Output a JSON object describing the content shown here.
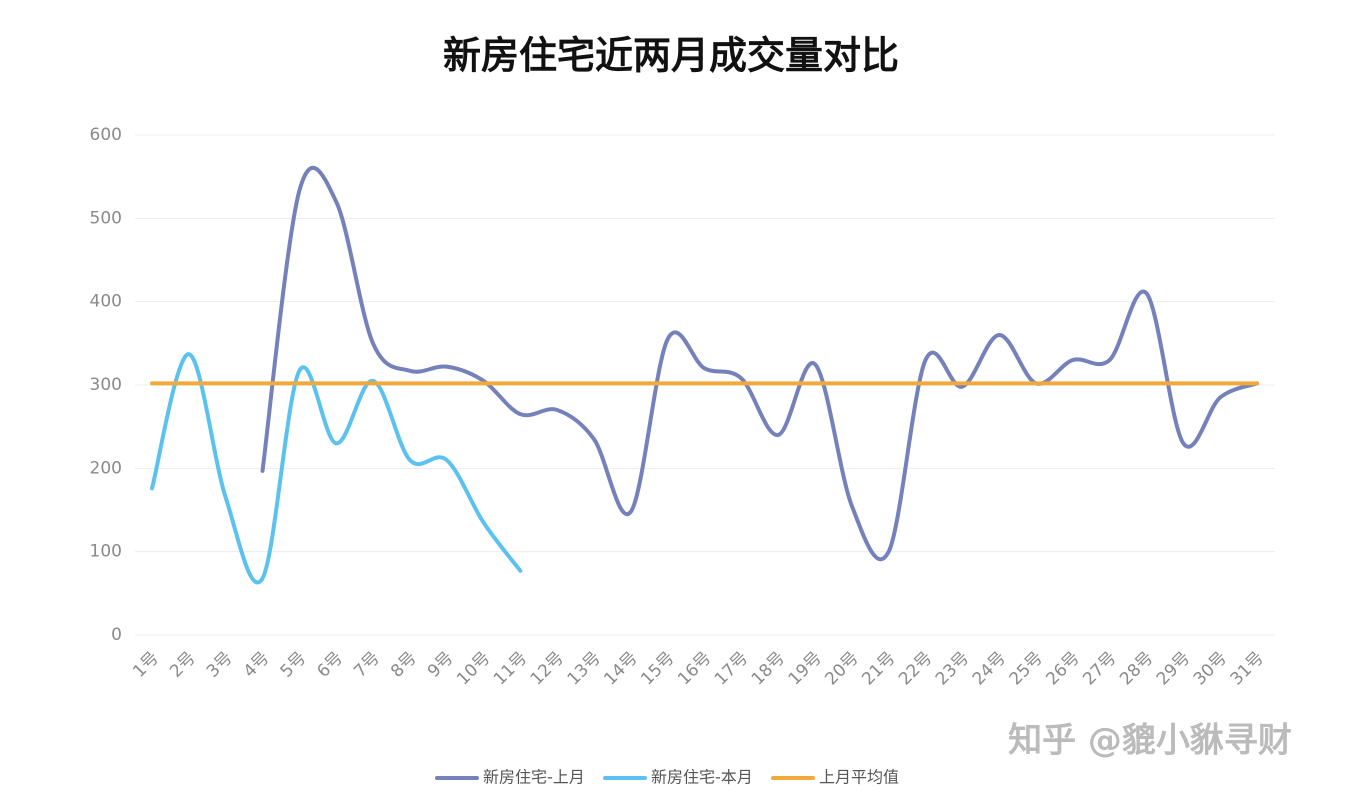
{
  "chart_data": {
    "type": "line",
    "title": "新房住宅近两月成交量对比",
    "watermark": "知乎 @貔小貅寻财",
    "categories": [
      "1号",
      "2号",
      "3号",
      "4号",
      "5号",
      "6号",
      "7号",
      "8号",
      "9号",
      "10号",
      "11号",
      "12号",
      "13号",
      "14号",
      "15号",
      "16号",
      "17号",
      "18号",
      "19号",
      "20号",
      "21号",
      "22号",
      "23号",
      "24号",
      "25号",
      "26号",
      "27号",
      "28号",
      "29号",
      "30号",
      "31号"
    ],
    "series": [
      {
        "name": "新房住宅-上月",
        "color": "#7581bb",
        "values": [
          null,
          null,
          null,
          197,
          533,
          520,
          350,
          317,
          322,
          305,
          265,
          270,
          235,
          148,
          355,
          320,
          308,
          240,
          325,
          155,
          100,
          330,
          298,
          360,
          302,
          330,
          330,
          410,
          230,
          285,
          302
        ]
      },
      {
        "name": "新房住宅-本月",
        "color": "#5bc2f0",
        "values": [
          176,
          337,
          165,
          68,
          317,
          230,
          305,
          210,
          210,
          135,
          77,
          null,
          null,
          null,
          null,
          null,
          null,
          null,
          null,
          null,
          null,
          null,
          null,
          null,
          null,
          null,
          null,
          null,
          null,
          null,
          null
        ]
      },
      {
        "name": "上月平均值",
        "color": "#f2a93b",
        "values": [
          302,
          302,
          302,
          302,
          302,
          302,
          302,
          302,
          302,
          302,
          302,
          302,
          302,
          302,
          302,
          302,
          302,
          302,
          302,
          302,
          302,
          302,
          302,
          302,
          302,
          302,
          302,
          302,
          302,
          302,
          302
        ]
      }
    ],
    "ylim": [
      0,
      600
    ],
    "yticks": [
      0,
      100,
      200,
      300,
      400,
      500,
      600
    ],
    "grid": true,
    "legend": "bottom",
    "smooth": true
  }
}
